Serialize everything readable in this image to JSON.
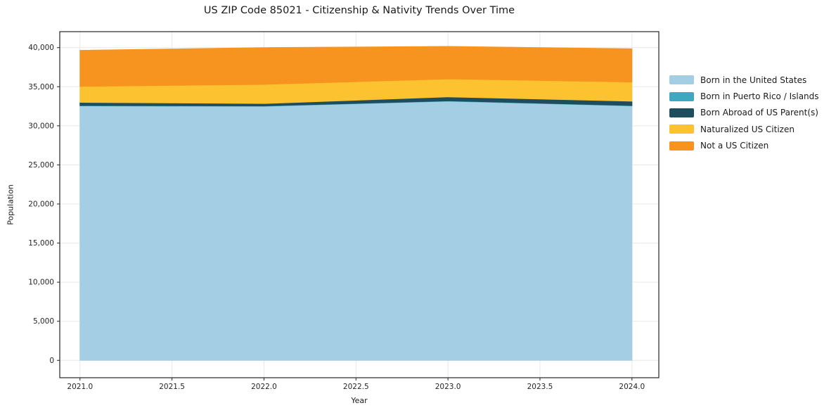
{
  "chart_data": {
    "type": "area",
    "stacked": true,
    "title": "US ZIP Code 85021 - Citizenship & Nativity Trends Over Time",
    "xlabel": "Year",
    "ylabel": "Population",
    "x": [
      2021,
      2022,
      2023,
      2024
    ],
    "series": [
      {
        "name": "Born in the United States",
        "color": "#a3cee3",
        "values": [
          32550,
          32500,
          33150,
          32550
        ]
      },
      {
        "name": "Born in Puerto Rico / Islands",
        "color": "#3ea8c0",
        "values": [
          50,
          50,
          50,
          50
        ]
      },
      {
        "name": "Born Abroad of US Parent(s)",
        "color": "#1e4d5e",
        "values": [
          400,
          300,
          500,
          550
        ]
      },
      {
        "name": "Naturalized US Citizen",
        "color": "#fcc22f",
        "values": [
          2050,
          2450,
          2300,
          2450
        ]
      },
      {
        "name": "Not a US Citizen",
        "color": "#f7941f",
        "values": [
          4600,
          4700,
          4150,
          4250
        ]
      }
    ],
    "stack_totals": [
      39650,
      40000,
      40150,
      39850
    ],
    "xticks": {
      "values": [
        2021.0,
        2021.5,
        2022.0,
        2022.5,
        2023.0,
        2023.5,
        2024.0
      ],
      "labels": [
        "2021.0",
        "2021.5",
        "2022.0",
        "2022.5",
        "2023.0",
        "2023.5",
        "2024.0"
      ]
    },
    "yticks": {
      "values": [
        0,
        5000,
        10000,
        15000,
        20000,
        25000,
        30000,
        35000,
        40000
      ],
      "labels": [
        "0",
        "5,000",
        "10,000",
        "15,000",
        "20,000",
        "25,000",
        "30,000",
        "35,000",
        "40,000"
      ]
    },
    "xlim": [
      2020.89,
      2024.146
    ],
    "ylim": [
      -2222,
      42043
    ],
    "grid": true,
    "legend_position": "right",
    "style": {
      "grid_color": "#e8e8e8",
      "spine_color": "#262626",
      "tick_label_color": "#262626",
      "background": "#ffffff"
    }
  }
}
